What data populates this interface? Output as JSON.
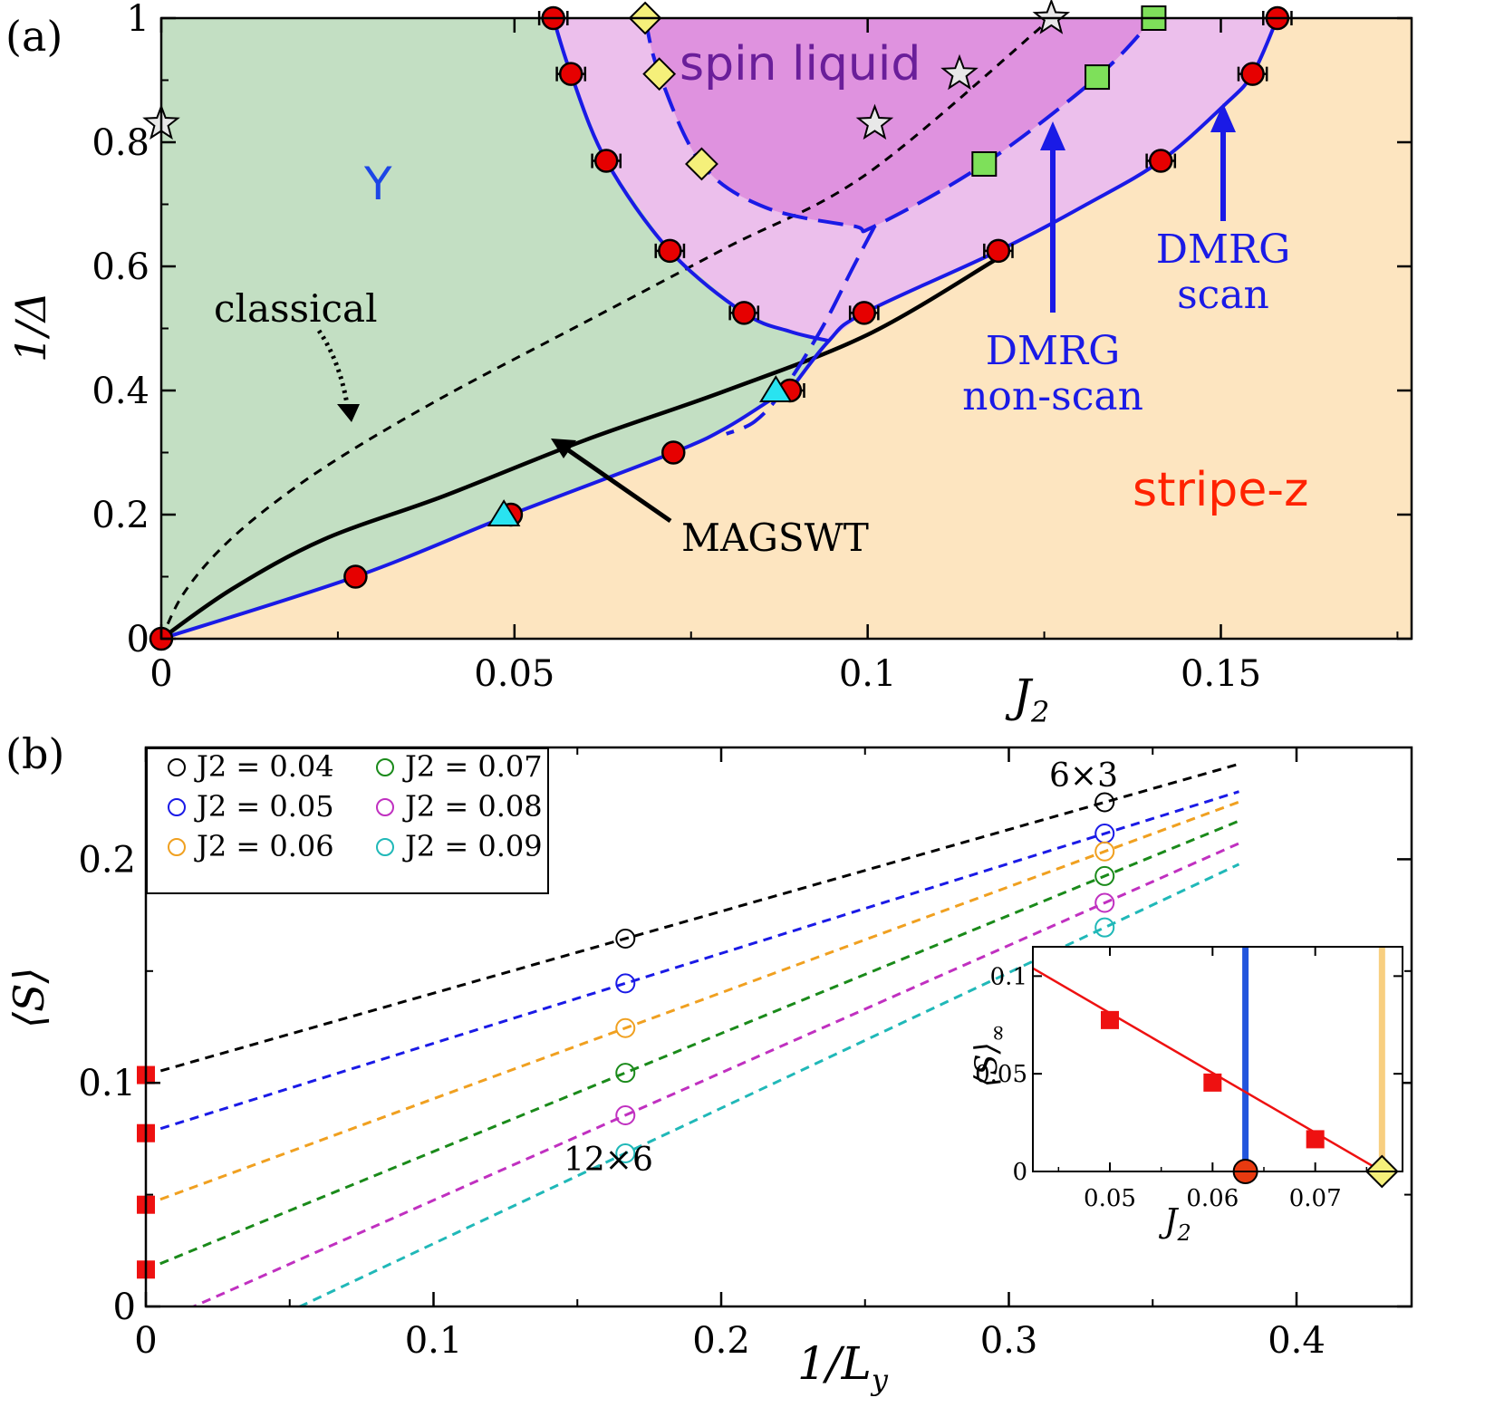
{
  "chart_data": [
    {
      "type": "scatter",
      "panel_label": "(a)",
      "xlabel": "J2",
      "ylabel": "1/Δ",
      "xlim": [
        0,
        0.177
      ],
      "ylim": [
        0,
        1
      ],
      "x_ticks": [
        "0",
        "0.05",
        "0.1",
        "0.15"
      ],
      "y_ticks": [
        "0",
        "0.2",
        "0.4",
        "0.6",
        "0.8",
        "1"
      ],
      "region_labels": {
        "y_phase": "Y",
        "spin_liquid": "spin liquid",
        "stripe_z": "stripe-z"
      },
      "annotations": {
        "classical": "classical",
        "magswt": "MAGSWT",
        "dmrg_nonscan": [
          "DMRG",
          "non-scan"
        ],
        "dmrg_scan": [
          "DMRG",
          "scan"
        ]
      },
      "colors": {
        "y_region": "#c3dfc3",
        "stripe_region": "#fde5c0",
        "spin_liquid_light": "#ecbfec",
        "spin_liquid_dark": "#df92df",
        "boundary": "#1a1ae6",
        "circles": "#e60000",
        "diamonds": "#f5f07a",
        "squares": "#7ee05a",
        "triangles": "#29e3f0",
        "stars": "#e8e8e8",
        "spin_liquid_text": "#6a1e9a",
        "stripe_text": "#ff2200",
        "y_text": "#1c46e6",
        "dmrg_text": "#1a1ae6"
      },
      "circle_points": [
        {
          "x": 0,
          "y": 0
        },
        {
          "x": 0.0275,
          "y": 0.1
        },
        {
          "x": 0.0495,
          "y": 0.2
        },
        {
          "x": 0.0725,
          "y": 0.3
        },
        {
          "x": 0.089,
          "y": 0.4
        },
        {
          "x": 0.0995,
          "y": 0.525
        },
        {
          "x": 0.0825,
          "y": 0.525
        },
        {
          "x": 0.072,
          "y": 0.625
        },
        {
          "x": 0.1185,
          "y": 0.625
        },
        {
          "x": 0.063,
          "y": 0.77
        },
        {
          "x": 0.1415,
          "y": 0.77
        },
        {
          "x": 0.058,
          "y": 0.91
        },
        {
          "x": 0.1545,
          "y": 0.91
        },
        {
          "x": 0.0555,
          "y": 1.0
        },
        {
          "x": 0.158,
          "y": 1.0
        }
      ],
      "circle_xerr": [
        0,
        0,
        0,
        0,
        0.002,
        0.002,
        0.002,
        0.002,
        0.002,
        0.002,
        0.002,
        0.002,
        0.002,
        0.002,
        0.002
      ],
      "triangle_points": [
        {
          "x": 0.0485,
          "y": 0.2
        },
        {
          "x": 0.087,
          "y": 0.4
        }
      ],
      "diamond_points": [
        {
          "x": 0.0685,
          "y": 1.0
        },
        {
          "x": 0.0705,
          "y": 0.91
        },
        {
          "x": 0.0765,
          "y": 0.765
        }
      ],
      "square_points": [
        {
          "x": 0.1405,
          "y": 1.0
        },
        {
          "x": 0.1325,
          "y": 0.905
        },
        {
          "x": 0.1165,
          "y": 0.765
        }
      ],
      "star_points": [
        {
          "x": 0,
          "y": 0.83
        },
        {
          "x": 0.101,
          "y": 0.83
        },
        {
          "x": 0.113,
          "y": 0.91
        },
        {
          "x": 0.126,
          "y": 1.0
        }
      ],
      "lines": {
        "classical": [
          [
            0,
            0
          ],
          [
            0.003,
            0.07
          ],
          [
            0.008,
            0.14
          ],
          [
            0.015,
            0.21
          ],
          [
            0.025,
            0.29
          ],
          [
            0.04,
            0.39
          ],
          [
            0.06,
            0.51
          ],
          [
            0.08,
            0.63
          ],
          [
            0.1,
            0.75
          ],
          [
            0.126,
            1.0
          ]
        ],
        "magswt": [
          [
            0,
            0
          ],
          [
            0.01,
            0.08
          ],
          [
            0.023,
            0.16
          ],
          [
            0.04,
            0.23
          ],
          [
            0.06,
            0.32
          ],
          [
            0.08,
            0.4
          ],
          [
            0.1,
            0.49
          ],
          [
            0.118,
            0.61
          ]
        ],
        "lower_boundary": [
          [
            0,
            0
          ],
          [
            0.0275,
            0.1
          ],
          [
            0.0495,
            0.2
          ],
          [
            0.0725,
            0.3
          ],
          [
            0.08,
            0.34
          ],
          [
            0.087,
            0.39
          ],
          [
            0.089,
            0.4
          ]
        ],
        "y_upper_boundary": [
          [
            0.0555,
            1.0
          ],
          [
            0.058,
            0.91
          ],
          [
            0.063,
            0.77
          ],
          [
            0.072,
            0.625
          ],
          [
            0.0825,
            0.525
          ],
          [
            0.089,
            0.495
          ],
          [
            0.0945,
            0.48
          ]
        ],
        "scan_boundary": [
          [
            0.089,
            0.4
          ],
          [
            0.0945,
            0.48
          ],
          [
            0.0995,
            0.525
          ],
          [
            0.1185,
            0.625
          ],
          [
            0.131,
            0.7
          ],
          [
            0.1415,
            0.77
          ],
          [
            0.1505,
            0.86
          ],
          [
            0.1545,
            0.91
          ],
          [
            0.158,
            1.0
          ]
        ],
        "nonscan_boundary": [
          [
            0.0685,
            1.0
          ],
          [
            0.0705,
            0.91
          ],
          [
            0.0765,
            0.765
          ],
          [
            0.0855,
            0.695
          ],
          [
            0.098,
            0.665
          ],
          [
            0.101,
            0.665
          ],
          [
            0.1165,
            0.765
          ],
          [
            0.1325,
            0.905
          ],
          [
            0.1405,
            1.0
          ]
        ],
        "nonscan_link": [
          [
            0.101,
            0.665
          ],
          [
            0.098,
            0.6
          ],
          [
            0.0935,
            0.5
          ],
          [
            0.088,
            0.4
          ],
          [
            0.084,
            0.35
          ],
          [
            0.08,
            0.33
          ]
        ]
      }
    },
    {
      "type": "scatter",
      "panel_label": "(b)",
      "xlabel": "1/Ly",
      "ylabel": "⟨S⟩",
      "xlim": [
        0,
        0.44
      ],
      "ylim": [
        0,
        0.25
      ],
      "x_ticks": [
        "0",
        "0.1",
        "0.2",
        "0.3",
        "0.4"
      ],
      "y_ticks": [
        "0",
        "0.1",
        "0.2"
      ],
      "size_labels": [
        "6×3",
        "12×6"
      ],
      "legend_position": "top-left",
      "series": [
        {
          "name": "J2 = 0.04",
          "color": "#000000",
          "x": [
            0.1667,
            0.3333
          ],
          "values": [
            0.1645,
            0.2255
          ],
          "intercept": 0.1035,
          "slope": 0.366
        },
        {
          "name": "J2 = 0.05",
          "color": "#1a1ae6",
          "x": [
            0.1667,
            0.3333
          ],
          "values": [
            0.1445,
            0.2115
          ],
          "intercept": 0.0775,
          "slope": 0.402
        },
        {
          "name": "J2 = 0.06",
          "color": "#f0a020",
          "x": [
            0.1667,
            0.3333
          ],
          "values": [
            0.1245,
            0.2035
          ],
          "intercept": 0.0455,
          "slope": 0.474
        },
        {
          "name": "J2 = 0.07",
          "color": "#1a8a1a",
          "x": [
            0.1667,
            0.3333
          ],
          "values": [
            0.1045,
            0.1925
          ],
          "intercept": 0.0165,
          "slope": 0.528
        },
        {
          "name": "J2 = 0.08",
          "color": "#c030c0",
          "x": [
            0.1667,
            0.3333
          ],
          "values": [
            0.0855,
            0.1805
          ],
          "intercept": -0.0095,
          "slope": 0.57
        },
        {
          "name": "J2 = 0.09",
          "color": "#20b8b8",
          "x": [
            0.1667,
            0.3333
          ],
          "values": [
            0.0685,
            0.1695
          ],
          "intercept": -0.0325,
          "slope": 0.606
        }
      ],
      "extrapolated": {
        "x": [
          0,
          0,
          0,
          0
        ],
        "values": [
          0.1035,
          0.0775,
          0.0455,
          0.0165
        ],
        "color": "#ee1111"
      },
      "inset": {
        "xlabel": "J2",
        "ylabel": "⟨S⟩∞",
        "xlim": [
          0.0425,
          0.0785
        ],
        "ylim": [
          0,
          0.115
        ],
        "x_ticks": [
          "0.05",
          "0.06",
          "0.07"
        ],
        "y_ticks": [
          "0",
          "0.05",
          "0.1"
        ],
        "x": [
          0.05,
          0.06,
          0.07
        ],
        "values": [
          0.0775,
          0.0455,
          0.0165
        ],
        "fit_line": [
          [
            0.0425,
            0.104
          ],
          [
            0.0765,
            0.0
          ]
        ],
        "blue_band_x": 0.0632,
        "yellow_band_x": 0.0765,
        "circle_point": {
          "x": 0.0632,
          "y": 0
        },
        "diamond_point": {
          "x": 0.0765,
          "y": 0
        }
      }
    }
  ]
}
